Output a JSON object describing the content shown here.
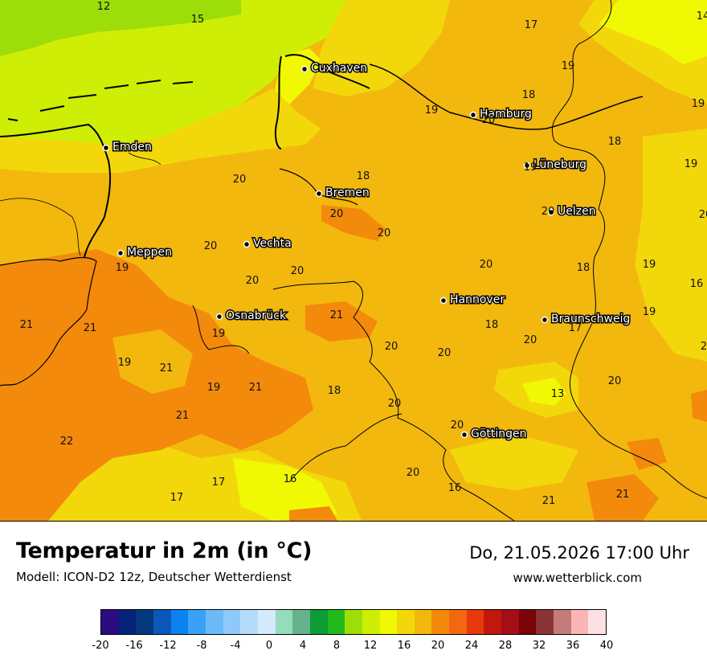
{
  "map": {
    "title": "Temperatur in 2m (in °C)",
    "model": "Modell: ICON-D2 12z, Deutscher Wetterdienst",
    "datetime": "Do, 21.05.2026 17:00 Uhr",
    "website": "www.wetterblick.com",
    "cities": [
      "Cuxhaven",
      "Hamburg",
      "Emden",
      "Bremen",
      "Lüneburg",
      "Uelzen",
      "Meppen",
      "Vechta",
      "Hannover",
      "Osnabrück",
      "Braunschweig",
      "Göttingen"
    ],
    "values": [
      "12",
      "15",
      "17",
      "14",
      "19",
      "18",
      "19",
      "20",
      "19",
      "18",
      "20",
      "18",
      "19",
      "19",
      "20",
      "20",
      "20",
      "20",
      "19",
      "20",
      "20",
      "18",
      "19",
      "16",
      "20",
      "20",
      "21",
      "21",
      "19",
      "21",
      "18",
      "17",
      "19",
      "19",
      "21",
      "20",
      "20",
      "20",
      "2",
      "21",
      "19",
      "18",
      "13",
      "20",
      "20",
      "22",
      "21",
      "20",
      "17",
      "16",
      "20",
      "16",
      "21",
      "21",
      "17"
    ]
  },
  "legend": {
    "colors": [
      "#2d0c82",
      "#06237a",
      "#04397d",
      "#0b58b8",
      "#0b82ef",
      "#3aa0f8",
      "#6cbaf8",
      "#8ec9f9",
      "#b5dbfb",
      "#d6eafd",
      "#95dcbb",
      "#64b38c",
      "#0c9b34",
      "#20ba1c",
      "#9ddd09",
      "#cfee06",
      "#f1f803",
      "#f2d80b",
      "#f3b80d",
      "#f38a0b",
      "#f26810",
      "#e63a0b",
      "#c0180f",
      "#a50d17",
      "#7b0207",
      "#8a3535",
      "#c67b7b",
      "#fab6b4",
      "#fde0e2"
    ],
    "ticks": [
      "-20",
      "-16",
      "-12",
      "-8",
      "-4",
      "0",
      "4",
      "8",
      "12",
      "16",
      "20",
      "24",
      "28",
      "32",
      "36",
      "40"
    ]
  }
}
